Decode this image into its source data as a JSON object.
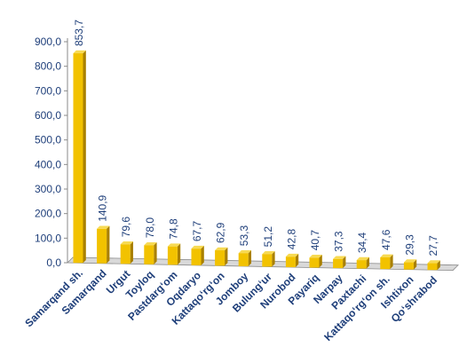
{
  "chart_data": {
    "type": "bar",
    "categories": [
      "Samarqand sh.",
      "Samarqand",
      "Urgut",
      "Toyloq",
      "Pastdarg‘om",
      "Oqdaryo",
      "Kattaqo‘rg‘on",
      "Jomboy",
      "Bulung‘ur",
      "Nurobod",
      "Payariq",
      "Narpay",
      "Paxtachi",
      "Kattaqo‘rg‘on sh.",
      "Ishtixon",
      "Qo‘shrabod"
    ],
    "values": [
      853.7,
      140.9,
      79.6,
      78.0,
      74.8,
      67.7,
      62.9,
      53.3,
      51.2,
      42.8,
      40.7,
      37.3,
      34.4,
      47.6,
      29.3,
      27.7
    ],
    "value_labels": [
      "853,7",
      "140,9",
      "79,6",
      "78,0",
      "74,8",
      "67,7",
      "62,9",
      "53,3",
      "51,2",
      "42,8",
      "40,7",
      "37,3",
      "34,4",
      "47,6",
      "29,3",
      "27,7"
    ],
    "ylim": [
      0,
      900
    ],
    "y_ticks": [
      0,
      100,
      200,
      300,
      400,
      500,
      600,
      700,
      800,
      900
    ],
    "y_tick_labels": [
      "0,0",
      "100,0",
      "200,0",
      "300,0",
      "400,0",
      "500,0",
      "600,0",
      "700,0",
      "800,0",
      "900,0"
    ],
    "grid": false,
    "style": "3d-bar",
    "colors": {
      "bar_front": "#f2c200",
      "bar_side": "#a98000",
      "bar_top": "#f7da53",
      "axis": "#8a8a8a",
      "text": "#1f3f7a",
      "floor": "#d9d9d9"
    }
  }
}
